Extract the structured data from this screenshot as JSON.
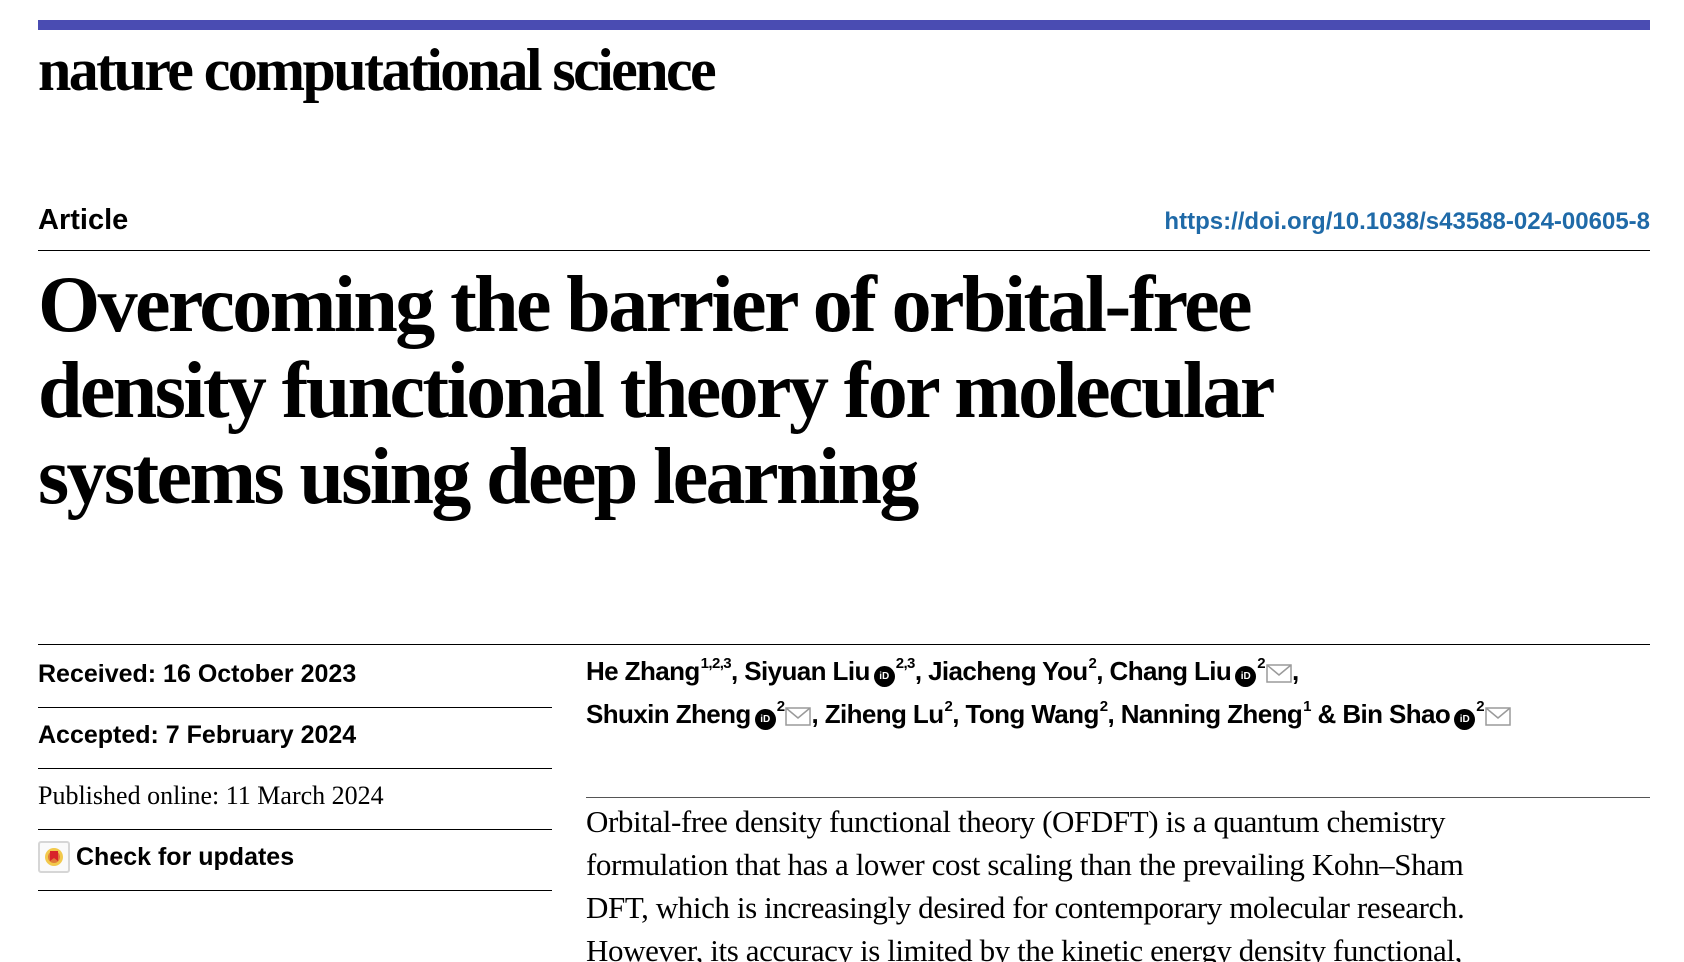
{
  "journal": {
    "name": "nature computational science",
    "accent_color": "#4a4cb2"
  },
  "header": {
    "article_type": "Article",
    "doi": "https://doi.org/10.1038/s43588-024-00605-8",
    "doi_color": "#1f6aa8"
  },
  "title_lines": [
    "Overcoming the barrier of orbital-free",
    "density functional theory for molecular",
    "systems using deep learning"
  ],
  "sidebar": {
    "received": "Received: 16 October 2023",
    "accepted": "Accepted: 7 February 2024",
    "published": "Published online: 11 March 2024",
    "check_updates": "Check for updates",
    "check_updates_icon": "crossmark-icon"
  },
  "authors": [
    {
      "name": "He Zhang",
      "sup": "1,2,3",
      "orcid": false,
      "corresponding": false
    },
    {
      "name": "Siyuan Liu",
      "sup": "2,3",
      "orcid": true,
      "corresponding": false
    },
    {
      "name": "Jiacheng You",
      "sup": "2",
      "orcid": false,
      "corresponding": false
    },
    {
      "name": "Chang Liu",
      "sup": "2",
      "orcid": true,
      "corresponding": true
    },
    {
      "name": "Shuxin Zheng",
      "sup": "2",
      "orcid": true,
      "corresponding": true
    },
    {
      "name": "Ziheng Lu",
      "sup": "2",
      "orcid": false,
      "corresponding": false
    },
    {
      "name": "Tong Wang",
      "sup": "2",
      "orcid": false,
      "corresponding": false
    },
    {
      "name": "Nanning Zheng",
      "sup": "1",
      "orcid": false,
      "corresponding": false
    },
    {
      "name": "Bin Shao",
      "sup": "2",
      "orcid": true,
      "corresponding": true
    }
  ],
  "author_separators": {
    "comma": ", ",
    "last": " & ",
    "orcid_icon_text": "iD"
  },
  "abstract_lines": [
    "Orbital-free density functional theory (OFDFT) is a quantum chemistry",
    "formulation that has a lower cost scaling than the prevailing Kohn–Sham",
    "DFT, which is increasingly desired for contemporary molecular research.",
    "However, its accuracy is limited by the kinetic energy density functional,"
  ]
}
